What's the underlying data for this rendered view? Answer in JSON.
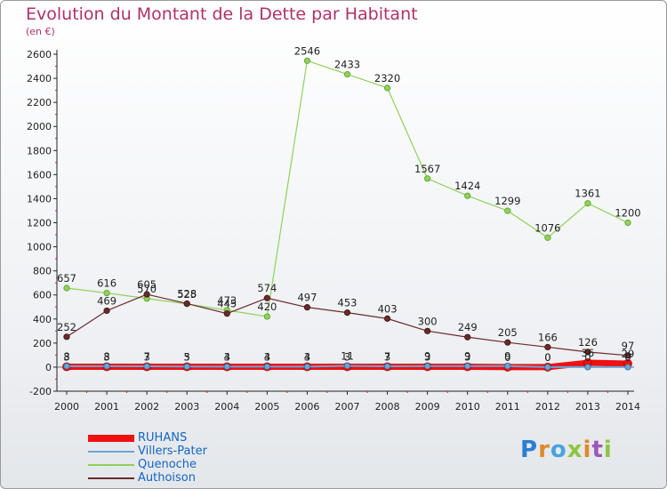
{
  "title": "Evolution du Montant de la Dette par Habitant",
  "subtitle": "(en €)",
  "logo": "Proxiti",
  "chart_data": {
    "type": "line",
    "title": "Evolution du Montant de la Dette par Habitant",
    "subtitle": "(en €)",
    "xlabel": "",
    "ylabel": "",
    "x": [
      "2000",
      "2001",
      "2002",
      "2003",
      "2004",
      "2005",
      "2006",
      "2007",
      "2008",
      "2009",
      "2010",
      "2011",
      "2012",
      "2013",
      "2014"
    ],
    "ylim": [
      -200,
      2600
    ],
    "yticks": [
      -200,
      0,
      200,
      400,
      600,
      800,
      1000,
      1200,
      1400,
      1600,
      1800,
      2000,
      2200,
      2400,
      2600
    ],
    "grid": false,
    "legend_position": "bottom-left",
    "series": [
      {
        "name": "RUHANS",
        "color": "#ee1111",
        "values": [
          3,
          3,
          3,
          3,
          3,
          3,
          3,
          3,
          3,
          3,
          3,
          0,
          0,
          36,
          29
        ],
        "labels": [
          "3",
          "3",
          "3",
          "3",
          "3",
          "3",
          "3",
          "3",
          "3",
          "3",
          "3",
          "0",
          "0",
          "36",
          "29"
        ]
      },
      {
        "name": "Villers-Pater",
        "color": "#6aa6d6",
        "values": [
          8,
          8,
          7,
          5,
          4,
          4,
          4,
          11,
          7,
          9,
          9,
          9,
          0,
          0,
          0
        ],
        "labels": [
          "8",
          "8",
          "7",
          "5",
          "4",
          "4",
          "4",
          "11",
          "7",
          "9",
          "9",
          "9",
          "0",
          "0",
          "0"
        ]
      },
      {
        "name": "Quenoche",
        "color": "#8fd15a",
        "values": [
          657,
          616,
          570,
          525,
          473,
          420,
          2546,
          2433,
          2320,
          1567,
          1424,
          1299,
          1076,
          1361,
          1200
        ],
        "labels": [
          "657",
          "616",
          "570",
          "525",
          "473",
          "420",
          "2546",
          "2433",
          "2320",
          "1567",
          "1424",
          "1299",
          "1076",
          "1361",
          "1200"
        ]
      },
      {
        "name": "Authoison",
        "color": "#6b2a2a",
        "values": [
          252,
          469,
          605,
          528,
          445,
          574,
          497,
          453,
          403,
          300,
          249,
          205,
          166,
          126,
          97
        ],
        "labels": [
          "252",
          "469",
          "605",
          "528",
          "445",
          "574",
          "497",
          "453",
          "403",
          "300",
          "249",
          "205",
          "166",
          "126",
          "97"
        ]
      }
    ]
  }
}
